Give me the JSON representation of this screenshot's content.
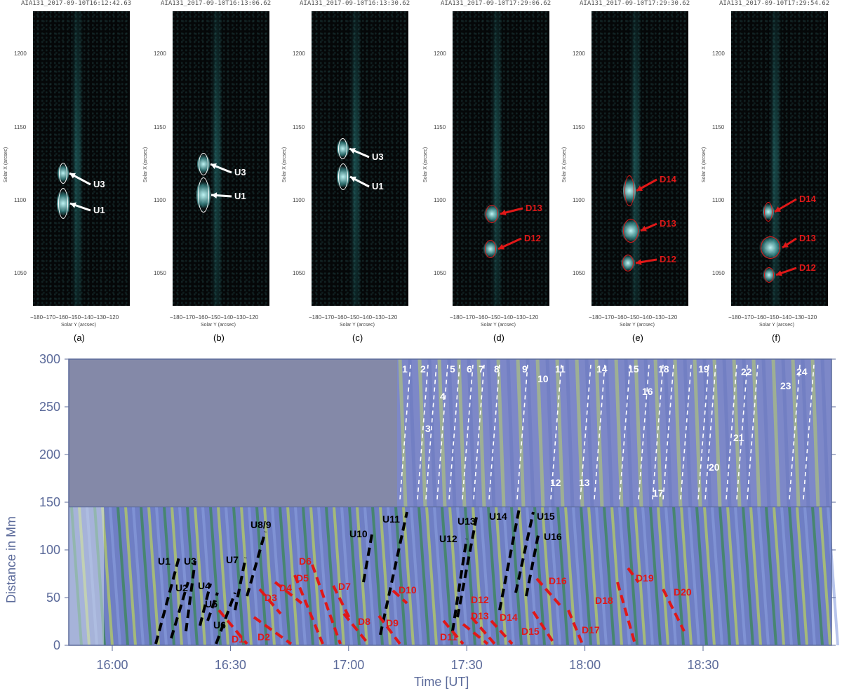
{
  "panels": [
    {
      "title": "AIA131_2017-09-10T16:12:42.63",
      "label": "(a)",
      "marks": [
        "U3",
        "U1"
      ]
    },
    {
      "title": "AIA131_2017-09-10T16:13:06.62",
      "label": "(b)",
      "marks": [
        "U3",
        "U1"
      ]
    },
    {
      "title": "AIA131_2017-09-10T16:13:30.62",
      "label": "(c)",
      "marks": [
        "U3",
        "U1"
      ]
    },
    {
      "title": "AIA131_2017-09-10T17:29:06.62",
      "label": "(d)",
      "marks": [
        "D13",
        "D12"
      ]
    },
    {
      "title": "AIA131_2017-09-10T17:29:30.62",
      "label": "(e)",
      "marks": [
        "D14",
        "D13",
        "D12"
      ]
    },
    {
      "title": "AIA131_2017-09-10T17:29:54.62",
      "label": "(f)",
      "marks": [
        "D14",
        "D13",
        "D12"
      ]
    }
  ],
  "panel_axes": {
    "y_ticks": [
      "1200",
      "1150",
      "1100",
      "1050"
    ],
    "x_ticks": "−180−170−160−150−140−130−120",
    "ylabel": "Solar X (arcsec)",
    "xlabel": "Solar Y (arcsec)"
  },
  "timeslice": {
    "ylabel": "Distance in Mm",
    "xlabel": "Time [UT]",
    "y_ticks": [
      "300",
      "250",
      "200",
      "150",
      "100",
      "50",
      "0"
    ],
    "x_ticks": [
      "16:00",
      "16:30",
      "17:00",
      "17:30",
      "18:00",
      "18:30"
    ],
    "upper_tracks": [
      "1",
      "2",
      "3",
      "4",
      "5",
      "6",
      "7",
      "8",
      "9",
      "10",
      "11",
      "12",
      "13",
      "14",
      "15",
      "16",
      "17",
      "18",
      "19",
      "20",
      "21",
      "22",
      "23",
      "24"
    ],
    "u_tracks": [
      "U1",
      "U2",
      "U3",
      "U4",
      "U5",
      "U6",
      "U7",
      "U8/9",
      "U10",
      "U11",
      "U12",
      "U13",
      "U14",
      "U15",
      "U16"
    ],
    "d_tracks": [
      "D1",
      "D2",
      "D3",
      "D4",
      "D5",
      "D6",
      "D7",
      "D8",
      "D9",
      "D10",
      "D11",
      "D12",
      "D13",
      "D14",
      "D15",
      "D16",
      "D17",
      "D18",
      "D19",
      "D20"
    ]
  },
  "colors": {
    "white_marks": "#ffffff",
    "red_marks": "#e01818",
    "axis_text": "#5b6a9a"
  }
}
